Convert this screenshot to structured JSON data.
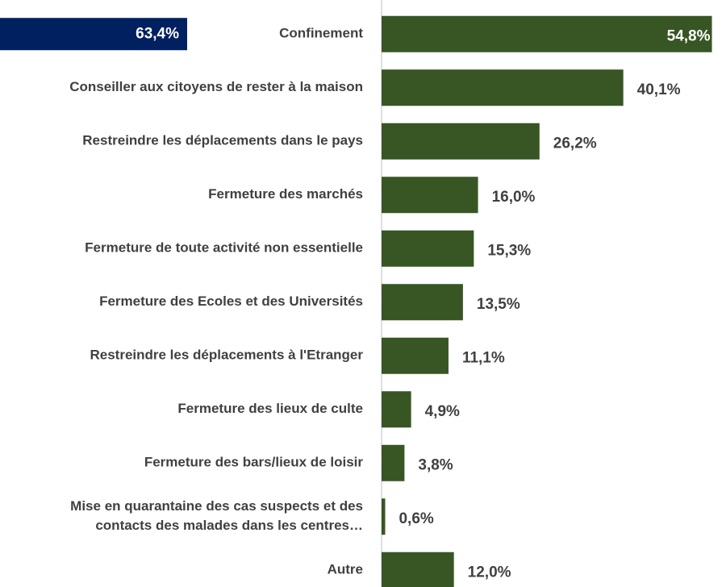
{
  "chart_data": {
    "type": "bar",
    "orientation": "horizontal",
    "categories": [
      "Confinement",
      "Conseiller aux citoyens de rester à la maison",
      "Restreindre les déplacements dans le pays",
      "Fermeture des marchés",
      "Fermeture de toute activité non essentielle",
      "Fermeture des Ecoles et des Universités",
      "Restreindre les déplacements à l'Etranger",
      "Fermeture des lieux de culte",
      "Fermeture des bars/lieux de loisir",
      [
        "Mise en quarantaine des cas suspects et des",
        "contacts des malades dans les centres…"
      ],
      "Autre"
    ],
    "series": [
      {
        "color": "#375623",
        "values": [
          54.8,
          40.1,
          26.2,
          16.0,
          15.3,
          13.5,
          11.1,
          4.9,
          3.8,
          0.6,
          12.0
        ],
        "value_labels": [
          "54,8%",
          "40,1%",
          "26,2%",
          "16,0%",
          "15,3%",
          "13,5%",
          "11,1%",
          "4,9%",
          "3,8%",
          "0,6%",
          "12,0%"
        ]
      },
      {
        "color": "#002060",
        "direction": "left",
        "values": [
          63.4,
          null,
          null,
          null,
          null,
          null,
          null,
          null,
          null,
          null,
          null
        ],
        "value_labels": [
          "63,4%",
          null,
          null,
          null,
          null,
          null,
          null,
          null,
          null,
          null,
          null
        ]
      }
    ],
    "xlim": [
      0,
      55
    ]
  }
}
